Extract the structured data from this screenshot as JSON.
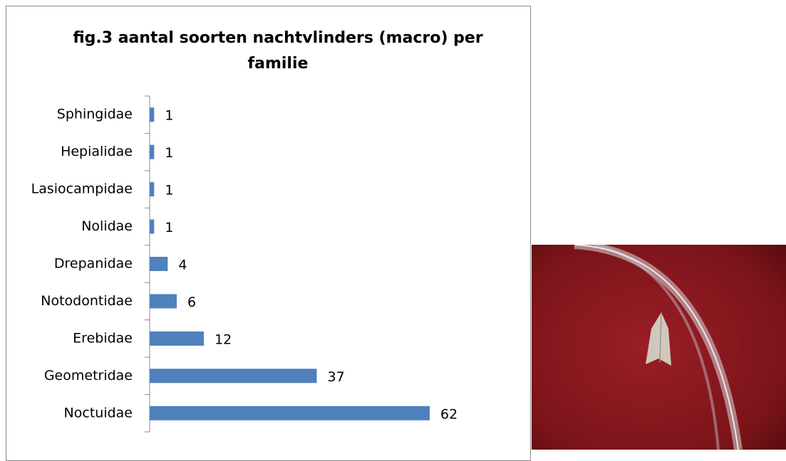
{
  "chart_data": {
    "type": "bar",
    "orientation": "horizontal",
    "title": "fig.3 aantal soorten nachtvlinders (macro) per familie",
    "categories": [
      "Sphingidae",
      "Hepialidae",
      "Lasiocampidae",
      "Nolidae",
      "Drepanidae",
      "Notodontidae",
      "Erebidae",
      "Geometridae",
      "Noctuidae"
    ],
    "values": [
      1,
      1,
      1,
      1,
      4,
      6,
      12,
      37,
      62
    ],
    "color": "#4f81bd"
  }
}
